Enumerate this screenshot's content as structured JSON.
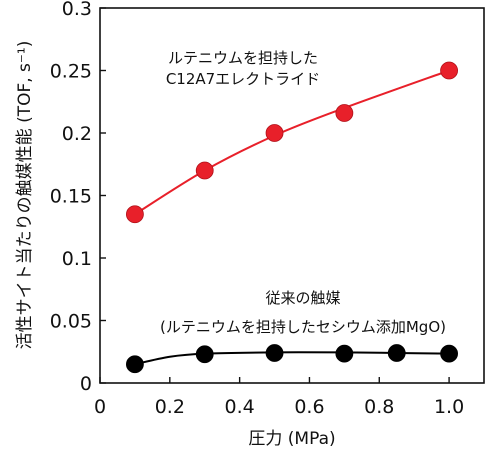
{
  "chart_data": {
    "type": "scatter",
    "xlabel": "圧力 (MPa)",
    "ylabel": "活性サイト当たりの触媒性能 (TOF, s⁻¹)",
    "xlim": [
      0,
      1.1
    ],
    "ylim": [
      0,
      0.3
    ],
    "x_ticks": [
      0,
      0.2,
      0.4,
      0.6,
      0.8,
      1.0
    ],
    "x_tick_labels": [
      "0",
      "0.2",
      "0.4",
      "0.6",
      "0.8",
      "1.0"
    ],
    "y_ticks": [
      0,
      0.05,
      0.1,
      0.15,
      0.2,
      0.25,
      0.3
    ],
    "y_tick_labels": [
      "0",
      "0.05",
      "0.1",
      "0.15",
      "0.2",
      "0.25",
      "0.3"
    ],
    "grid": false,
    "series": [
      {
        "name": "ルテニウムを担持したC12A7エレクトライド",
        "label_lines": [
          "ルテニウムを担持した",
          "C12A7エレクトライド"
        ],
        "color": "#e8202a",
        "line_color": "#e8202a",
        "x": [
          0.1,
          0.3,
          0.5,
          0.7,
          1.0
        ],
        "y": [
          0.135,
          0.17,
          0.2,
          0.216,
          0.25
        ],
        "fit_curve": [
          [
            0.1,
            0.135
          ],
          [
            0.3,
            0.17
          ],
          [
            0.5,
            0.198
          ],
          [
            0.7,
            0.22
          ],
          [
            1.0,
            0.25
          ]
        ]
      },
      {
        "name": "従来の触媒 (ルテニウムを担持したセシウム添加MgO)",
        "label_lines": [
          "従来の触媒",
          "(ルテニウムを担持したセシウム添加MgO)"
        ],
        "color": "#000000",
        "line_color": "#000000",
        "x": [
          0.1,
          0.3,
          0.5,
          0.7,
          0.85,
          1.0
        ],
        "y": [
          0.015,
          0.023,
          0.024,
          0.0235,
          0.024,
          0.0235
        ],
        "fit_curve": [
          [
            0.1,
            0.015
          ],
          [
            0.2,
            0.021
          ],
          [
            0.3,
            0.0235
          ],
          [
            0.5,
            0.0245
          ],
          [
            0.7,
            0.0245
          ],
          [
            0.85,
            0.024
          ],
          [
            1.0,
            0.0235
          ]
        ]
      }
    ]
  }
}
